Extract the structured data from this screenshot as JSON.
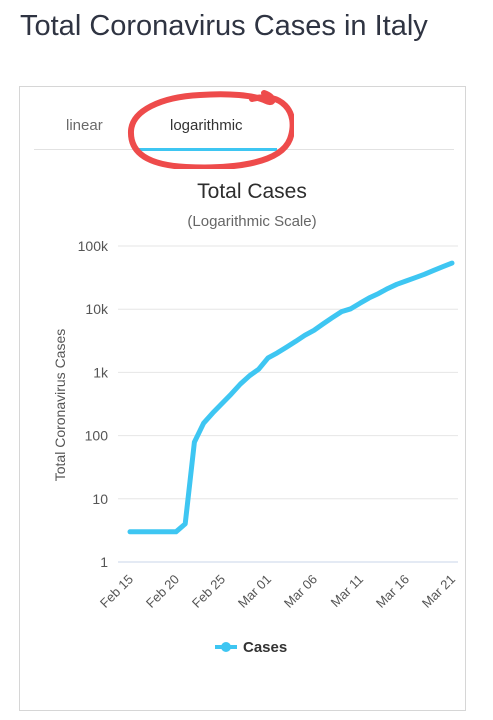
{
  "page": {
    "title": "Total Coronavirus Cases in Italy"
  },
  "tabs": [
    {
      "label": "linear",
      "active": false
    },
    {
      "label": "logarithmic",
      "active": true
    }
  ],
  "colors": {
    "accent": "#3ec6f2",
    "highlight_circle": "#ee4b4b"
  },
  "chart_data": {
    "type": "line",
    "title": "Total Cases",
    "subtitle": "(Logarithmic Scale)",
    "ylabel": "Total Coronavirus Cases",
    "xlabel": "",
    "yscale": "log",
    "ylim": [
      1,
      100000
    ],
    "yticks": [
      {
        "value": 1,
        "label": "1"
      },
      {
        "value": 10,
        "label": "10"
      },
      {
        "value": 100,
        "label": "100"
      },
      {
        "value": 1000,
        "label": "1k"
      },
      {
        "value": 10000,
        "label": "10k"
      },
      {
        "value": 100000,
        "label": "100k"
      }
    ],
    "xticks": [
      "Feb 15",
      "Feb 20",
      "Feb 25",
      "Mar 01",
      "Mar 06",
      "Mar 11",
      "Mar 16",
      "Mar 21"
    ],
    "legend": {
      "position": "bottom"
    },
    "grid": true,
    "series": [
      {
        "name": "Cases",
        "color": "#3ec6f2",
        "x": [
          "Feb 15",
          "Feb 16",
          "Feb 17",
          "Feb 18",
          "Feb 19",
          "Feb 20",
          "Feb 21",
          "Feb 22",
          "Feb 23",
          "Feb 24",
          "Feb 25",
          "Feb 26",
          "Feb 27",
          "Feb 28",
          "Feb 29",
          "Mar 01",
          "Mar 02",
          "Mar 03",
          "Mar 04",
          "Mar 05",
          "Mar 06",
          "Mar 07",
          "Mar 08",
          "Mar 09",
          "Mar 10",
          "Mar 11",
          "Mar 12",
          "Mar 13",
          "Mar 14",
          "Mar 15",
          "Mar 16",
          "Mar 17",
          "Mar 18",
          "Mar 19",
          "Mar 20",
          "Mar 21"
        ],
        "values": [
          3,
          3,
          3,
          3,
          3,
          3,
          4,
          79,
          157,
          229,
          322,
          453,
          655,
          888,
          1128,
          1694,
          2036,
          2502,
          3089,
          3858,
          4636,
          5883,
          7375,
          9172,
          10149,
          12462,
          15113,
          17660,
          21157,
          24747,
          27980,
          31506,
          35713,
          41035,
          47021,
          53578
        ]
      }
    ]
  }
}
